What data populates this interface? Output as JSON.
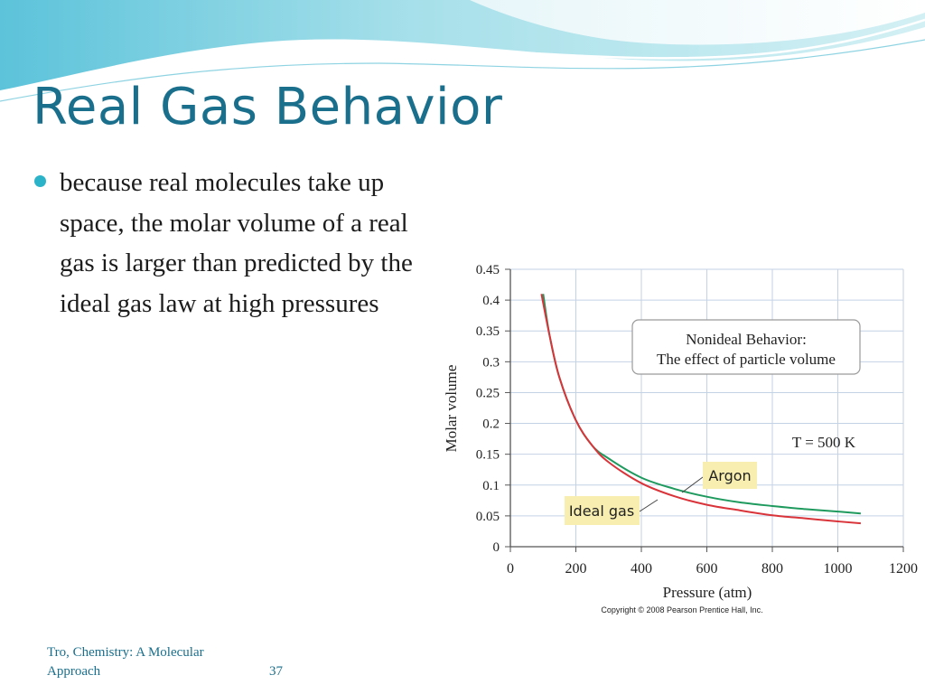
{
  "slide": {
    "title": "Real Gas Behavior",
    "bullets": [
      "because real molecules take up space, the molar volume of a real gas is larger than predicted by the ideal gas law at high pressures"
    ],
    "footer_source": "Tro, Chemistry: A Molecular Approach",
    "page_number": "37"
  },
  "colors": {
    "title": "#1a6f8c",
    "bullet": "#2bb4c9",
    "argon_line": "#1f9a5e",
    "ideal_line": "#d9343a",
    "callout_fill": "#f7eeb0",
    "grid": "#c4d2e6"
  },
  "chart_data": {
    "type": "line",
    "xlabel": "Pressure (atm)",
    "ylabel": "Molar volume",
    "xlim": [
      0,
      1200
    ],
    "ylim": [
      0,
      0.45
    ],
    "x_ticks": [
      "0",
      "200",
      "400",
      "600",
      "800",
      "1000",
      "1200"
    ],
    "y_ticks": [
      "0",
      "0.05",
      "0.1",
      "0.15",
      "0.2",
      "0.25",
      "0.3",
      "0.35",
      "0.4",
      "0.45"
    ],
    "grid": true,
    "series": [
      {
        "name": "Argon",
        "x": [
          100,
          120,
          150,
          200,
          250,
          300,
          400,
          500,
          600,
          700,
          800,
          900,
          1000,
          1070
        ],
        "y": [
          0.41,
          0.342,
          0.274,
          0.205,
          0.164,
          0.143,
          0.112,
          0.094,
          0.081,
          0.072,
          0.066,
          0.061,
          0.057,
          0.054
        ]
      },
      {
        "name": "Ideal gas",
        "x": [
          95,
          120,
          150,
          200,
          250,
          300,
          400,
          500,
          600,
          700,
          800,
          900,
          1000,
          1070
        ],
        "y": [
          0.41,
          0.342,
          0.274,
          0.205,
          0.164,
          0.137,
          0.103,
          0.082,
          0.068,
          0.059,
          0.051,
          0.046,
          0.041,
          0.038
        ]
      }
    ],
    "annotations": {
      "box_line1": "Nonideal Behavior:",
      "box_line2": "The effect of particle volume",
      "temperature": "T = 500 K",
      "argon_label": "Argon",
      "ideal_label": "Ideal gas"
    },
    "copyright": "Copyright © 2008 Pearson Prentice Hall, Inc."
  }
}
